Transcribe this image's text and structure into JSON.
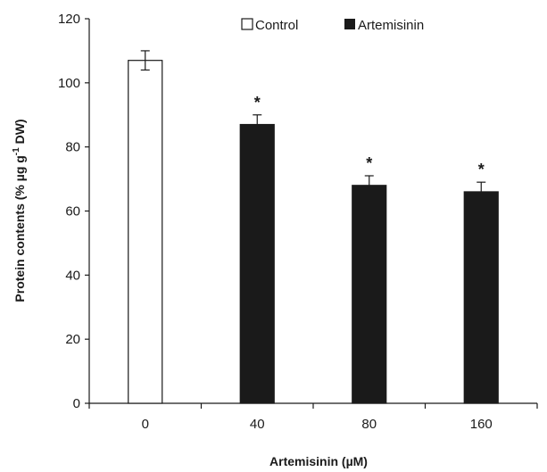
{
  "chart_data": {
    "type": "bar",
    "title": "",
    "xlabel": "Artemisinin (µM)",
    "ylabel": {
      "main": "Protein contents (% µg g",
      "superscript": "-1",
      "tail": " DW)"
    },
    "ylim": [
      0,
      120
    ],
    "yticks": [
      0,
      20,
      40,
      60,
      80,
      100,
      120
    ],
    "categories": [
      "0",
      "40",
      "80",
      "160"
    ],
    "series": [
      {
        "name": "Control",
        "values": [
          107.0,
          null,
          null,
          null
        ],
        "errors": [
          3.0,
          null,
          null,
          null
        ],
        "color": "#ffffff"
      },
      {
        "name": "Artemisinin",
        "values": [
          null,
          87.0,
          68.0,
          66.0
        ],
        "errors": [
          null,
          3.0,
          3.0,
          3.0
        ],
        "color": "#1a1a1a"
      }
    ],
    "significance": [
      "",
      "*",
      "*",
      "*"
    ],
    "legend_position": "top",
    "grid": false
  }
}
